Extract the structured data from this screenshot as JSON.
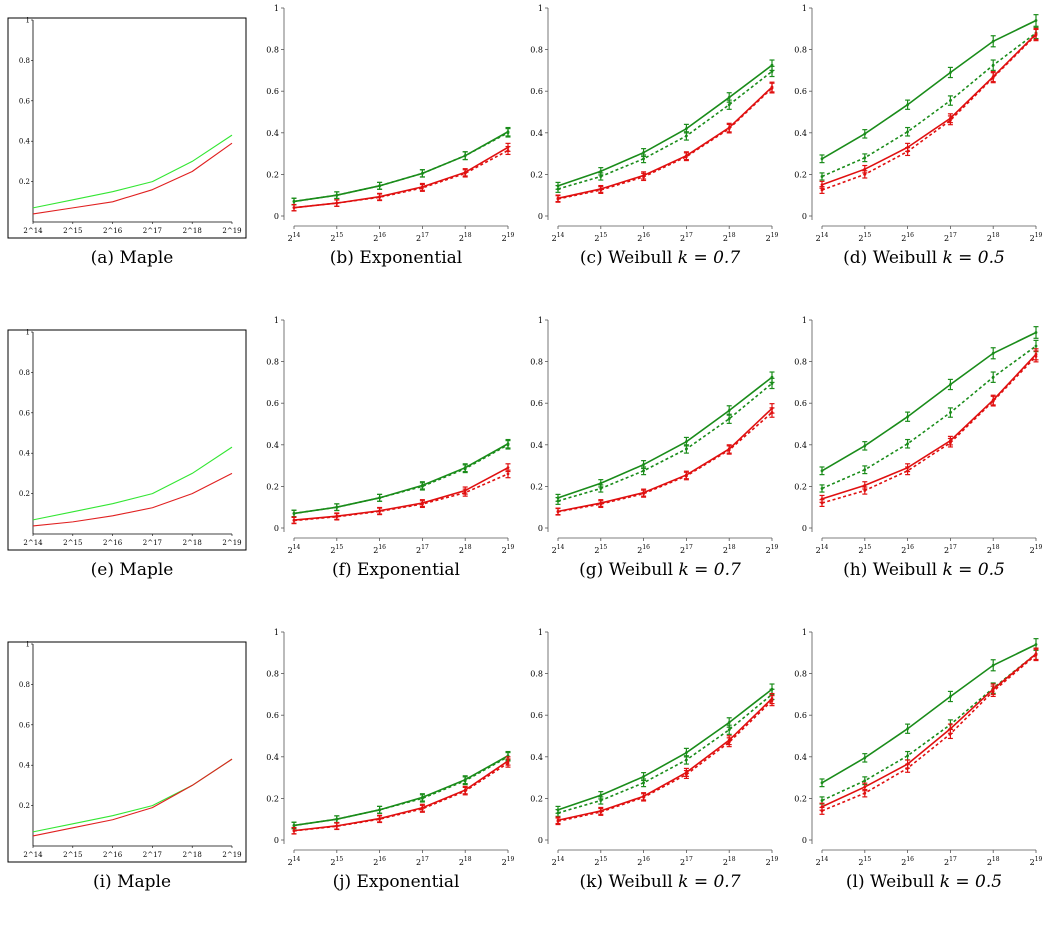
{
  "colors": {
    "green": "#1a8c1a",
    "red": "#e01010",
    "maple_green": "#33e633",
    "maple_red": "#e02020",
    "axis": "#555555"
  },
  "chart_data": [
    {
      "id": "a",
      "type": "line",
      "style": "maple",
      "caption_label": "(a)",
      "caption_text": "Maple",
      "caption_math": "",
      "x": [
        "2^14",
        "2^15",
        "2^16",
        "2^17",
        "2^18",
        "2^19"
      ],
      "x_tick_labels": [
        "2^14",
        "2^15",
        "2^16",
        "2^17",
        "2^18",
        "2^19"
      ],
      "y_ticks": [
        1,
        0.8,
        0.6,
        0.4,
        0.2
      ],
      "ylim": [
        0,
        1
      ],
      "series": [
        {
          "color_key": "maple_green",
          "values": [
            0.07,
            0.11,
            0.15,
            0.2,
            0.3,
            0.43
          ]
        },
        {
          "color_key": "maple_red",
          "values": [
            0.04,
            0.07,
            0.1,
            0.16,
            0.25,
            0.39
          ]
        }
      ]
    },
    {
      "id": "b",
      "type": "line",
      "style": "sim",
      "caption_label": "(b)",
      "caption_text": "Exponential",
      "caption_math": "",
      "x": [
        14,
        15,
        16,
        17,
        18,
        19
      ],
      "y_ticks": [
        0,
        0.2,
        0.4,
        0.6,
        0.8,
        1
      ],
      "ylim": [
        0,
        1
      ],
      "series": [
        {
          "color_key": "green",
          "dashed": false,
          "values": [
            0.07,
            0.1,
            0.145,
            0.205,
            0.29,
            0.405
          ]
        },
        {
          "color_key": "green",
          "dashed": true,
          "values": [
            0.07,
            0.1,
            0.145,
            0.205,
            0.29,
            0.4
          ]
        },
        {
          "color_key": "red",
          "dashed": false,
          "values": [
            0.04,
            0.062,
            0.093,
            0.14,
            0.21,
            0.33
          ]
        },
        {
          "color_key": "red",
          "dashed": true,
          "values": [
            0.04,
            0.062,
            0.09,
            0.135,
            0.205,
            0.315
          ]
        }
      ]
    },
    {
      "id": "c",
      "type": "line",
      "style": "sim",
      "caption_label": "(c)",
      "caption_text": "Weibull",
      "caption_math": "k = 0.7",
      "x": [
        14,
        15,
        16,
        17,
        18,
        19
      ],
      "y_ticks": [
        0,
        0.2,
        0.4,
        0.6,
        0.8,
        1
      ],
      "ylim": [
        0,
        1
      ],
      "series": [
        {
          "color_key": "green",
          "dashed": false,
          "values": [
            0.145,
            0.215,
            0.305,
            0.42,
            0.57,
            0.725
          ]
        },
        {
          "color_key": "green",
          "dashed": true,
          "values": [
            0.13,
            0.19,
            0.275,
            0.385,
            0.535,
            0.695
          ]
        },
        {
          "color_key": "red",
          "dashed": false,
          "values": [
            0.085,
            0.13,
            0.195,
            0.29,
            0.425,
            0.62
          ]
        },
        {
          "color_key": "red",
          "dashed": true,
          "values": [
            0.082,
            0.125,
            0.188,
            0.285,
            0.42,
            0.615
          ]
        }
      ]
    },
    {
      "id": "d",
      "type": "line",
      "style": "sim",
      "caption_label": "(d)",
      "caption_text": "Weibull",
      "caption_math": "k = 0.5",
      "x": [
        14,
        15,
        16,
        17,
        18,
        19
      ],
      "y_ticks": [
        0,
        0.2,
        0.4,
        0.6,
        0.8,
        1
      ],
      "ylim": [
        0,
        1
      ],
      "series": [
        {
          "color_key": "green",
          "dashed": false,
          "values": [
            0.275,
            0.395,
            0.535,
            0.69,
            0.84,
            0.94
          ]
        },
        {
          "color_key": "green",
          "dashed": true,
          "values": [
            0.19,
            0.28,
            0.405,
            0.555,
            0.725,
            0.88
          ]
        },
        {
          "color_key": "red",
          "dashed": false,
          "values": [
            0.15,
            0.225,
            0.33,
            0.47,
            0.67,
            0.875
          ]
        },
        {
          "color_key": "red",
          "dashed": true,
          "values": [
            0.125,
            0.2,
            0.31,
            0.46,
            0.665,
            0.87
          ]
        }
      ]
    },
    {
      "id": "e",
      "type": "line",
      "style": "maple",
      "caption_label": "(e)",
      "caption_text": "Maple",
      "caption_math": "",
      "x": [
        "2^14",
        "2^15",
        "2^16",
        "2^17",
        "2^18",
        "2^19"
      ],
      "x_tick_labels": [
        "2^14",
        "2^15",
        "2^16",
        "2^17",
        "2^18",
        "2^19"
      ],
      "y_ticks": [
        1,
        0.8,
        0.6,
        0.4,
        0.2
      ],
      "ylim": [
        0,
        1
      ],
      "series": [
        {
          "color_key": "maple_green",
          "values": [
            0.07,
            0.11,
            0.15,
            0.2,
            0.3,
            0.43
          ]
        },
        {
          "color_key": "maple_red",
          "values": [
            0.04,
            0.06,
            0.09,
            0.13,
            0.2,
            0.3
          ]
        }
      ]
    },
    {
      "id": "f",
      "type": "line",
      "style": "sim",
      "caption_label": "(f)",
      "caption_text": "Exponential",
      "caption_math": "",
      "x": [
        14,
        15,
        16,
        17,
        18,
        19
      ],
      "y_ticks": [
        0,
        0.2,
        0.4,
        0.6,
        0.8,
        1
      ],
      "ylim": [
        0,
        1
      ],
      "series": [
        {
          "color_key": "green",
          "dashed": false,
          "values": [
            0.07,
            0.1,
            0.145,
            0.205,
            0.29,
            0.405
          ]
        },
        {
          "color_key": "green",
          "dashed": true,
          "values": [
            0.07,
            0.1,
            0.145,
            0.2,
            0.285,
            0.4
          ]
        },
        {
          "color_key": "red",
          "dashed": false,
          "values": [
            0.038,
            0.057,
            0.083,
            0.12,
            0.18,
            0.29
          ]
        },
        {
          "color_key": "red",
          "dashed": true,
          "values": [
            0.036,
            0.054,
            0.08,
            0.115,
            0.17,
            0.26
          ]
        }
      ]
    },
    {
      "id": "g",
      "type": "line",
      "style": "sim",
      "caption_label": "(g)",
      "caption_text": "Weibull",
      "caption_math": "k = 0.7",
      "x": [
        14,
        15,
        16,
        17,
        18,
        19
      ],
      "y_ticks": [
        0,
        0.2,
        0.4,
        0.6,
        0.8,
        1
      ],
      "ylim": [
        0,
        1
      ],
      "series": [
        {
          "color_key": "green",
          "dashed": false,
          "values": [
            0.145,
            0.215,
            0.305,
            0.415,
            0.565,
            0.725
          ]
        },
        {
          "color_key": "green",
          "dashed": true,
          "values": [
            0.13,
            0.19,
            0.275,
            0.38,
            0.525,
            0.695
          ]
        },
        {
          "color_key": "red",
          "dashed": false,
          "values": [
            0.08,
            0.12,
            0.17,
            0.255,
            0.38,
            0.575
          ]
        },
        {
          "color_key": "red",
          "dashed": true,
          "values": [
            0.078,
            0.115,
            0.165,
            0.25,
            0.375,
            0.555
          ]
        }
      ]
    },
    {
      "id": "h",
      "type": "line",
      "style": "sim",
      "caption_label": "(h)",
      "caption_text": "Weibull",
      "caption_math": "k = 0.5",
      "x": [
        14,
        15,
        16,
        17,
        18,
        19
      ],
      "y_ticks": [
        0,
        0.2,
        0.4,
        0.6,
        0.8,
        1
      ],
      "ylim": [
        0,
        1
      ],
      "series": [
        {
          "color_key": "green",
          "dashed": false,
          "values": [
            0.275,
            0.395,
            0.535,
            0.69,
            0.84,
            0.94
          ]
        },
        {
          "color_key": "green",
          "dashed": true,
          "values": [
            0.19,
            0.28,
            0.405,
            0.555,
            0.725,
            0.875
          ]
        },
        {
          "color_key": "red",
          "dashed": false,
          "values": [
            0.14,
            0.205,
            0.29,
            0.42,
            0.615,
            0.835
          ]
        },
        {
          "color_key": "red",
          "dashed": true,
          "values": [
            0.12,
            0.18,
            0.275,
            0.41,
            0.61,
            0.825
          ]
        }
      ]
    },
    {
      "id": "i",
      "type": "line",
      "style": "maple",
      "caption_label": "(i)",
      "caption_text": "Maple",
      "caption_math": "",
      "x": [
        "2^14",
        "2^15",
        "2^16",
        "2^17",
        "2^18",
        "2^19"
      ],
      "x_tick_labels": [
        "2^14",
        "2^15",
        "2^16",
        "2^17",
        "2^18",
        "2^19"
      ],
      "y_ticks": [
        1,
        0.8,
        0.6,
        0.4,
        0.2
      ],
      "ylim": [
        0,
        1
      ],
      "series": [
        {
          "color_key": "maple_green",
          "values": [
            0.07,
            0.11,
            0.15,
            0.2,
            0.3,
            0.43
          ]
        },
        {
          "color_key": "maple_red",
          "values": [
            0.05,
            0.09,
            0.13,
            0.19,
            0.3,
            0.43
          ]
        }
      ]
    },
    {
      "id": "j",
      "type": "line",
      "style": "sim",
      "caption_label": "(j)",
      "caption_text": "Exponential",
      "caption_math": "",
      "x": [
        14,
        15,
        16,
        17,
        18,
        19
      ],
      "y_ticks": [
        0,
        0.2,
        0.4,
        0.6,
        0.8,
        1
      ],
      "ylim": [
        0,
        1
      ],
      "series": [
        {
          "color_key": "green",
          "dashed": false,
          "values": [
            0.07,
            0.1,
            0.145,
            0.205,
            0.29,
            0.405
          ]
        },
        {
          "color_key": "green",
          "dashed": true,
          "values": [
            0.07,
            0.1,
            0.145,
            0.2,
            0.285,
            0.4
          ]
        },
        {
          "color_key": "red",
          "dashed": false,
          "values": [
            0.045,
            0.068,
            0.103,
            0.155,
            0.24,
            0.38
          ]
        },
        {
          "color_key": "red",
          "dashed": true,
          "values": [
            0.044,
            0.066,
            0.1,
            0.15,
            0.235,
            0.37
          ]
        }
      ]
    },
    {
      "id": "k",
      "type": "line",
      "style": "sim",
      "caption_label": "(k)",
      "caption_text": "Weibull",
      "caption_math": "k = 0.7",
      "x": [
        14,
        15,
        16,
        17,
        18,
        19
      ],
      "y_ticks": [
        0,
        0.2,
        0.4,
        0.6,
        0.8,
        1
      ],
      "ylim": [
        0,
        1
      ],
      "series": [
        {
          "color_key": "green",
          "dashed": false,
          "values": [
            0.145,
            0.215,
            0.305,
            0.42,
            0.565,
            0.725
          ]
        },
        {
          "color_key": "green",
          "dashed": true,
          "values": [
            0.13,
            0.19,
            0.275,
            0.385,
            0.53,
            0.7
          ]
        },
        {
          "color_key": "red",
          "dashed": false,
          "values": [
            0.095,
            0.14,
            0.21,
            0.325,
            0.48,
            0.68
          ]
        },
        {
          "color_key": "red",
          "dashed": true,
          "values": [
            0.09,
            0.135,
            0.205,
            0.315,
            0.47,
            0.67
          ]
        }
      ]
    },
    {
      "id": "l",
      "type": "line",
      "style": "sim",
      "caption_label": "(l)",
      "caption_text": "Weibull",
      "caption_math": "k = 0.5",
      "x": [
        14,
        15,
        16,
        17,
        18,
        19
      ],
      "y_ticks": [
        0,
        0.2,
        0.4,
        0.6,
        0.8,
        1
      ],
      "ylim": [
        0,
        1
      ],
      "series": [
        {
          "color_key": "green",
          "dashed": false,
          "values": [
            0.275,
            0.395,
            0.535,
            0.69,
            0.84,
            0.94
          ]
        },
        {
          "color_key": "green",
          "dashed": true,
          "values": [
            0.19,
            0.285,
            0.405,
            0.555,
            0.73,
            0.895
          ]
        },
        {
          "color_key": "red",
          "dashed": false,
          "values": [
            0.16,
            0.255,
            0.365,
            0.535,
            0.725,
            0.895
          ]
        },
        {
          "color_key": "red",
          "dashed": true,
          "values": [
            0.14,
            0.225,
            0.345,
            0.51,
            0.715,
            0.89
          ]
        }
      ]
    }
  ]
}
